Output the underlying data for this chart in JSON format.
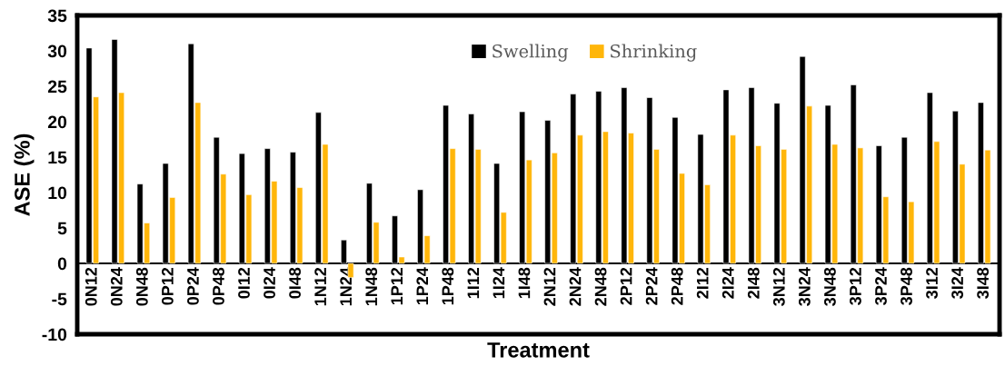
{
  "chart_data": {
    "type": "bar",
    "xlabel": "Treatment",
    "ylabel": "ASE (%)",
    "categories": [
      "0N12",
      "0N24",
      "0N48",
      "0P12",
      "0P24",
      "0P48",
      "0I12",
      "0I24",
      "0I48",
      "1N12",
      "1N24",
      "1N48",
      "1P12",
      "1P24",
      "1P48",
      "1I12",
      "1I24",
      "1I48",
      "2N12",
      "2N24",
      "2N48",
      "2P12",
      "2P24",
      "2P48",
      "2I12",
      "2I24",
      "2I48",
      "3N12",
      "3N24",
      "3N48",
      "3P12",
      "3P24",
      "3P48",
      "3I12",
      "3I24",
      "3I48"
    ],
    "series": [
      {
        "name": "Swelling",
        "color": "#000000",
        "values": [
          30.4,
          31.6,
          11.2,
          14.1,
          31.0,
          17.8,
          15.5,
          16.2,
          15.7,
          21.3,
          3.3,
          11.3,
          6.7,
          10.4,
          22.3,
          21.1,
          14.1,
          21.4,
          20.2,
          23.9,
          24.3,
          24.8,
          23.4,
          20.6,
          18.2,
          24.5,
          24.8,
          22.6,
          29.2,
          22.3,
          25.2,
          16.6,
          17.8,
          24.1,
          21.5,
          22.7
        ]
      },
      {
        "name": "Shrinking",
        "color": "#ffb60a",
        "values": [
          23.5,
          24.1,
          5.7,
          9.3,
          22.7,
          12.6,
          9.7,
          11.6,
          10.7,
          16.8,
          -2.0,
          5.8,
          0.9,
          3.9,
          16.2,
          16.1,
          7.2,
          14.6,
          15.6,
          18.1,
          18.6,
          18.4,
          16.1,
          12.7,
          11.1,
          18.1,
          16.6,
          16.1,
          22.2,
          16.8,
          16.3,
          9.4,
          8.7,
          17.2,
          14.0,
          16.0
        ]
      }
    ],
    "ylim": [
      -10,
      35
    ],
    "yticks": [
      -10,
      -5,
      0,
      5,
      10,
      15,
      20,
      25,
      30,
      35
    ],
    "grid": false,
    "legend": "top"
  }
}
